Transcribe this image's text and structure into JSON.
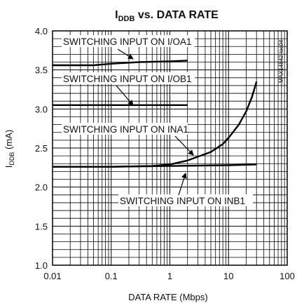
{
  "chart_data": {
    "type": "line",
    "title_main": "I",
    "title_sub": "DDB",
    "title_rest": " vs. DATA RATE",
    "xlabel": "DATA RATE (Mbps)",
    "ylabel_main": "I",
    "ylabel_sub": "DDB",
    "ylabel_rest": " (mA)",
    "watermark": "MAX14842 toc04",
    "x_scale": "log",
    "xlim": [
      0.01,
      100
    ],
    "ylim": [
      1.0,
      4.0
    ],
    "x_ticks": [
      0.01,
      0.1,
      1,
      10,
      100
    ],
    "x_tick_labels": [
      "0.01",
      "0.1",
      "1",
      "10",
      "100"
    ],
    "y_ticks": [
      1.0,
      1.5,
      2.0,
      2.5,
      3.0,
      3.5,
      4.0
    ],
    "y_tick_labels": [
      "1.0",
      "1.5",
      "2.0",
      "2.5",
      "3.0",
      "3.5",
      "4.0"
    ],
    "grid": true,
    "series": [
      {
        "name": "SWITCHING INPUT ON I/OA1",
        "x": [
          0.01,
          0.05,
          0.1,
          0.3,
          1,
          2
        ],
        "y": [
          3.56,
          3.56,
          3.58,
          3.6,
          3.61,
          3.62
        ]
      },
      {
        "name": "SWITCHING INPUT ON I/OB1",
        "x": [
          0.01,
          0.1,
          1,
          2
        ],
        "y": [
          3.05,
          3.05,
          3.05,
          3.05
        ]
      },
      {
        "name": "SWITCHING INPUT ON INA1",
        "x": [
          0.01,
          0.1,
          0.5,
          1,
          2,
          5,
          8,
          10,
          15,
          20,
          25,
          30
        ],
        "y": [
          2.26,
          2.26,
          2.27,
          2.29,
          2.34,
          2.45,
          2.55,
          2.63,
          2.8,
          2.97,
          3.15,
          3.35
        ]
      },
      {
        "name": "SWITCHING INPUT ON INB1",
        "x": [
          0.01,
          0.1,
          1,
          10,
          30
        ],
        "y": [
          2.26,
          2.26,
          2.27,
          2.28,
          2.29
        ]
      }
    ],
    "annotations": [
      {
        "text": "SWITCHING INPUT ON I/OA1",
        "series": 0
      },
      {
        "text": "SWITCHING INPUT ON I/OB1",
        "series": 1
      },
      {
        "text": "SWITCHING INPUT ON INA1",
        "series": 2
      },
      {
        "text": "SWITCHING INPUT ON INB1",
        "series": 3
      }
    ]
  }
}
